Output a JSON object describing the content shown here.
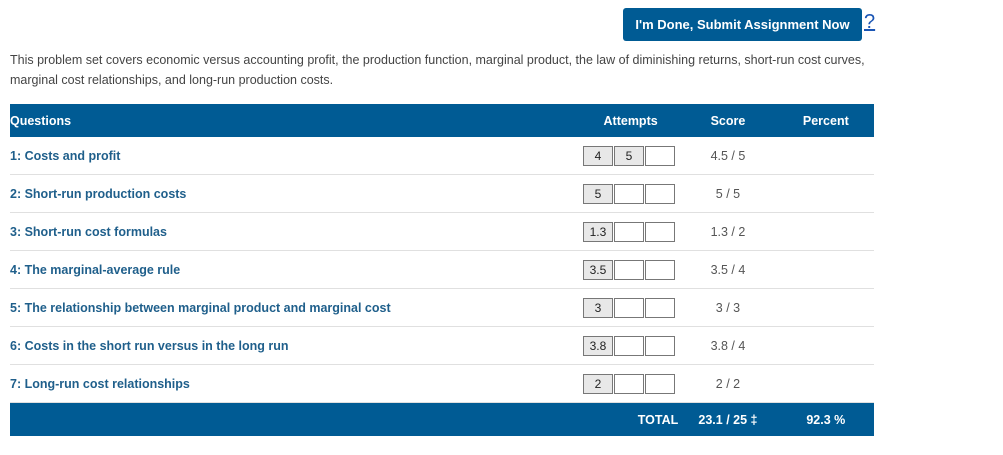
{
  "header": {
    "submit_label": "I'm Done, Submit Assignment Now",
    "help_label": "?"
  },
  "description": "This problem set covers economic versus accounting profit, the production function, marginal product, the law of diminishing returns, short-run cost curves, marginal cost relationships, and long-run production costs.",
  "table": {
    "headers": {
      "questions": "Questions",
      "attempts": "Attempts",
      "score": "Score",
      "percent": "Percent"
    },
    "rows": [
      {
        "question": "1: Costs and profit",
        "attempts": [
          "4",
          "5",
          ""
        ],
        "score": "4.5 / 5"
      },
      {
        "question": "2: Short-run production costs",
        "attempts": [
          "5",
          "",
          ""
        ],
        "score": "5 / 5"
      },
      {
        "question": "3: Short-run cost formulas",
        "attempts": [
          "1.3",
          "",
          ""
        ],
        "score": "1.3 / 2"
      },
      {
        "question": "4: The marginal-average rule",
        "attempts": [
          "3.5",
          "",
          ""
        ],
        "score": "3.5 / 4"
      },
      {
        "question": "5: The relationship between marginal product and marginal cost",
        "attempts": [
          "3",
          "",
          ""
        ],
        "score": "3 / 3"
      },
      {
        "question": "6: Costs in the short run versus in the long run",
        "attempts": [
          "3.8",
          "",
          ""
        ],
        "score": "3.8 / 4"
      },
      {
        "question": "7: Long-run cost relationships",
        "attempts": [
          "2",
          "",
          ""
        ],
        "score": "2 / 2"
      }
    ],
    "total": {
      "label": "TOTAL",
      "score": "23.1 / 25 ‡",
      "percent": "92.3 %"
    }
  },
  "colors": {
    "header_bg": "#005b94",
    "question_text": "#1f5f8b",
    "help_link": "#1a55b4"
  }
}
